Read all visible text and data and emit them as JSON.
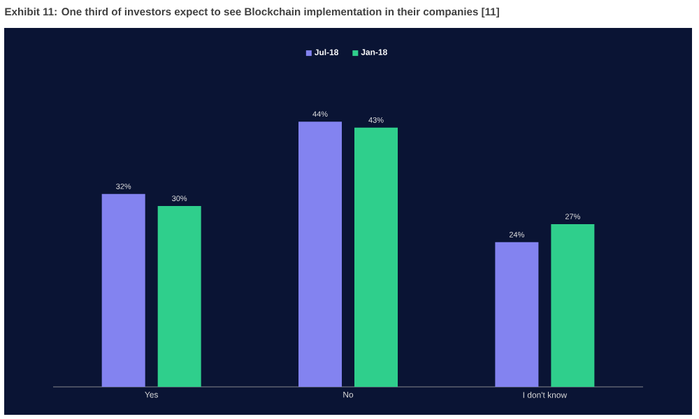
{
  "chart_data": {
    "type": "bar",
    "title": "Exhibit 11: One third of investors expect to see Blockchain implementation in their companies [11]",
    "categories": [
      "Yes",
      "No",
      "I don't know"
    ],
    "series": [
      {
        "name": "Jul-18",
        "color": "#8383f0",
        "values": [
          32,
          44,
          24
        ],
        "value_labels": [
          "32%",
          "44%",
          "24%"
        ]
      },
      {
        "name": "Jan-18",
        "color": "#2fcf8c",
        "values": [
          30,
          43,
          27
        ],
        "value_labels": [
          "30%",
          "43%",
          "27%"
        ]
      }
    ],
    "legend": "top"
  }
}
